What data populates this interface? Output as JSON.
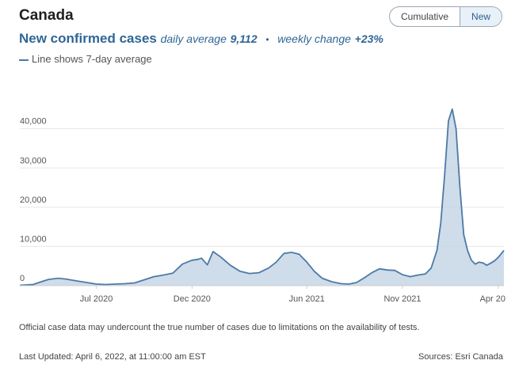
{
  "header": {
    "title": "Canada",
    "toggle": {
      "cumulative": "Cumulative",
      "new": "New"
    }
  },
  "subtitle": {
    "main": "New confirmed cases",
    "daily_label": "daily average",
    "daily_value": "9,112",
    "bullet": "•",
    "weekly_label": "weekly change",
    "weekly_value": "+23%"
  },
  "note": "Line shows 7-day average",
  "colors": {
    "line": "#4c7aa6",
    "fill": "#c7d6e5",
    "accent": "#2f6695"
  },
  "chart_data": {
    "type": "area",
    "title": "New confirmed cases",
    "ylim": [
      0,
      48000
    ],
    "y_ticks": [
      0,
      10000,
      20000,
      30000,
      40000
    ],
    "y_tick_labels": [
      "0",
      "10,000",
      "20,000",
      "30,000",
      "40,000"
    ],
    "x_tick_labels": [
      "Jul 2020",
      "Dec 2020",
      "Jun 2021",
      "Nov 2021",
      "Apr 20"
    ],
    "x_tick_months": [
      4,
      9,
      15,
      20,
      25
    ],
    "series": [
      {
        "name": "7-day average",
        "x_month": [
          0,
          0.7,
          1.0,
          1.5,
          2.0,
          2.4,
          3.0,
          3.5,
          4.0,
          4.5,
          5.0,
          5.5,
          6.0,
          6.5,
          7.0,
          7.5,
          8.0,
          8.5,
          9.0,
          9.3,
          9.5,
          9.8,
          10.1,
          10.5,
          11.0,
          11.5,
          12.0,
          12.5,
          13.0,
          13.4,
          13.8,
          14.2,
          14.6,
          15.0,
          15.4,
          15.8,
          16.3,
          16.8,
          17.2,
          17.6,
          18.0,
          18.4,
          18.8,
          19.2,
          19.6,
          20.0,
          20.4,
          20.8,
          21.2,
          21.5,
          21.8,
          22.0,
          22.2,
          22.4,
          22.6,
          22.8,
          23.0,
          23.2,
          23.4,
          23.6,
          23.8,
          24.0,
          24.2,
          24.4,
          24.6,
          24.8,
          25.0,
          25.3
        ],
        "values": [
          100,
          300,
          800,
          1600,
          1900,
          1700,
          1200,
          800,
          400,
          300,
          400,
          500,
          700,
          1500,
          2300,
          2700,
          3200,
          5500,
          6500,
          6700,
          7000,
          5300,
          8700,
          7300,
          5200,
          3700,
          3100,
          3300,
          4500,
          6000,
          8200,
          8500,
          8000,
          6000,
          3600,
          1900,
          1000,
          500,
          400,
          800,
          2000,
          3300,
          4300,
          4000,
          3900,
          2800,
          2300,
          2700,
          3000,
          4500,
          9000,
          16000,
          28000,
          42000,
          45000,
          40000,
          25000,
          13000,
          9000,
          6500,
          5500,
          6000,
          5800,
          5200,
          5700,
          6300,
          7200,
          9000
        ]
      }
    ],
    "footnote": "Official case data may undercount the true number of cases due to limitations on the availability of tests.",
    "last_updated": "Last Updated: April 6, 2022, at 11:00:00 am EST",
    "sources": "Sources: Esri Canada"
  }
}
